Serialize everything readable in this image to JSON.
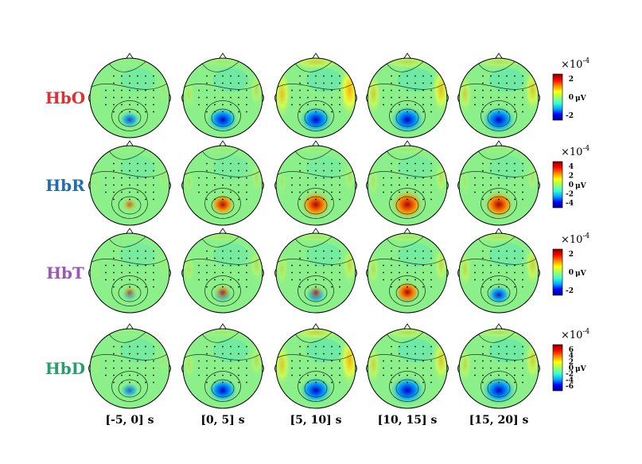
{
  "figure": {
    "rows": [
      {
        "label": "HbO",
        "color": "#e03030",
        "colorbar": {
          "exponent_base": "×10",
          "exponent_power": "-4",
          "unit": "μV",
          "ticks": [
            "2",
            "0",
            "-2"
          ]
        },
        "maps": [
          {
            "blue": 0.3,
            "red": 0.0,
            "warm_edges": 0.05
          },
          {
            "blue": 0.75,
            "red": 0.0,
            "warm_edges": 0.15
          },
          {
            "blue": 0.85,
            "red": 0.0,
            "warm_edges": 0.45
          },
          {
            "blue": 0.9,
            "red": 0.0,
            "warm_edges": 0.35
          },
          {
            "blue": 0.9,
            "red": 0.0,
            "warm_edges": 0.3
          }
        ]
      },
      {
        "label": "HbR",
        "color": "#1f6fb0",
        "colorbar": {
          "exponent_base": "×10",
          "exponent_power": "-4",
          "unit": "μV",
          "ticks": [
            "4",
            "2",
            "0",
            "-2",
            "-4"
          ]
        },
        "maps": [
          {
            "blue": 0.0,
            "red": 0.1,
            "warm_edges": 0.05
          },
          {
            "blue": 0.0,
            "red": 0.55,
            "warm_edges": 0.1
          },
          {
            "blue": 0.0,
            "red": 0.85,
            "warm_edges": 0.1
          },
          {
            "blue": 0.0,
            "red": 0.95,
            "warm_edges": 0.15
          },
          {
            "blue": 0.0,
            "red": 0.85,
            "warm_edges": 0.1
          }
        ]
      },
      {
        "label": "HbT",
        "color": "#9b59b6",
        "colorbar": {
          "exponent_base": "×10",
          "exponent_power": "-4",
          "unit": "μV",
          "ticks": [
            "2",
            "0",
            "-2"
          ]
        },
        "maps": [
          {
            "blue": 0.05,
            "red": 0.05,
            "warm_edges": 0.05
          },
          {
            "blue": 0.2,
            "red": 0.2,
            "warm_edges": 0.15
          },
          {
            "blue": 0.3,
            "red": 0.1,
            "warm_edges": 0.2
          },
          {
            "blue": 0.3,
            "red": 0.6,
            "warm_edges": 0.2
          },
          {
            "blue": 0.45,
            "red": 0.0,
            "warm_edges": 0.25
          }
        ]
      },
      {
        "label": "HbD",
        "color": "#27a06a",
        "colorbar": {
          "exponent_base": "×10",
          "exponent_power": "-4",
          "unit": "μV",
          "ticks": [
            "6",
            "4",
            "2",
            "0",
            "-2",
            "-4",
            "-6"
          ]
        },
        "maps": [
          {
            "blue": 0.2,
            "red": 0.0,
            "warm_edges": 0.05
          },
          {
            "blue": 0.7,
            "red": 0.0,
            "warm_edges": 0.15
          },
          {
            "blue": 0.85,
            "red": 0.0,
            "warm_edges": 0.4
          },
          {
            "blue": 0.95,
            "red": 0.0,
            "warm_edges": 0.3
          },
          {
            "blue": 0.9,
            "red": 0.0,
            "warm_edges": 0.25
          }
        ]
      }
    ],
    "columns": [
      "[-5, 0] s",
      "[0, 5] s",
      "[5, 10] s",
      "[10, 15] s",
      "[15, 20] s"
    ],
    "colormap": [
      "#00008f",
      "#0000ff",
      "#00b0ff",
      "#40ffd0",
      "#a0ff60",
      "#ffff00",
      "#ff8000",
      "#ff0000",
      "#800000"
    ]
  }
}
